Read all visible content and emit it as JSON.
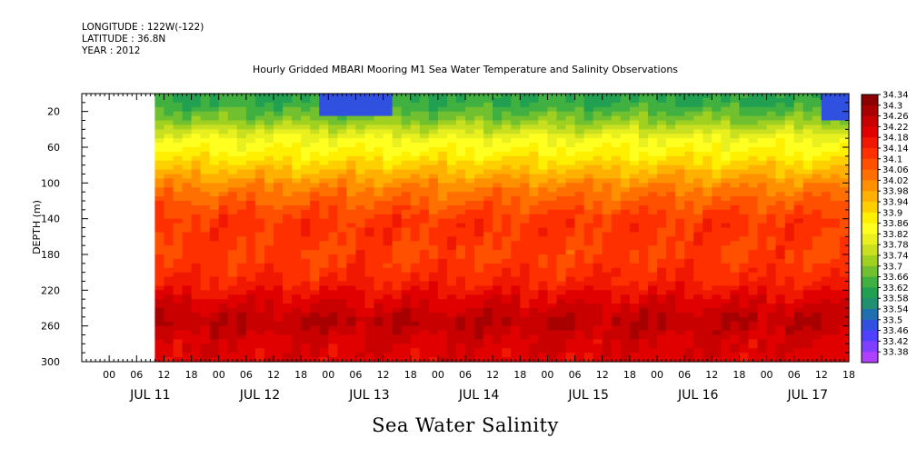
{
  "header": {
    "longitude": "LONGITUDE : 122W(-122)",
    "latitude": "LATITUDE : 36.8N",
    "year": "YEAR : 2012"
  },
  "chart_data": {
    "type": "heatmap",
    "title": "Hourly Gridded MBARI Mooring M1 Sea Water Temperature and Salinity Observations",
    "footer_label": "Sea Water Salinity",
    "ylabel": "DEPTH (m)",
    "y_axis": {
      "range": [
        0,
        300
      ],
      "inverted": true,
      "ticks": [
        20,
        60,
        100,
        140,
        180,
        220,
        260,
        300
      ]
    },
    "x_axis": {
      "hour_ticks": [
        "00",
        "06",
        "12",
        "18",
        "00",
        "06",
        "12",
        "18",
        "00",
        "06",
        "12",
        "18",
        "00",
        "06",
        "12",
        "18",
        "00",
        "06",
        "12",
        "18",
        "00",
        "06",
        "12",
        "18",
        "00",
        "06",
        "12",
        "18"
      ],
      "day_labels": [
        "JUL 11",
        "JUL 12",
        "JUL 13",
        "JUL 14",
        "JUL 15",
        "JUL 16",
        "JUL 17"
      ],
      "data_start_hour": 4,
      "range_hours": [
        -12,
        156
      ]
    },
    "colorbar": {
      "levels": [
        "34.34",
        "34.3",
        "34.26",
        "34.22",
        "34.18",
        "34.14",
        "34.1",
        "34.06",
        "34.02",
        "33.98",
        "33.94",
        "33.9",
        "33.86",
        "33.82",
        "33.78",
        "33.74",
        "33.7",
        "33.66",
        "33.62",
        "33.58",
        "33.54",
        "33.5",
        "33.46",
        "33.42",
        "33.38"
      ],
      "colors": [
        "#8b0000",
        "#a80000",
        "#c80000",
        "#e00000",
        "#f01800",
        "#ff3000",
        "#ff5000",
        "#ff7000",
        "#ff9000",
        "#ffb000",
        "#ffd000",
        "#ffef00",
        "#ffff20",
        "#e8f020",
        "#c8e020",
        "#a0d020",
        "#70c030",
        "#40b040",
        "#20a050",
        "#209070",
        "#2070b0",
        "#3050e0",
        "#5040ff",
        "#8040ff",
        "#b040ff"
      ]
    },
    "depth_profile": [
      {
        "depth": 10,
        "salinity": 33.66
      },
      {
        "depth": 30,
        "salinity": 33.74
      },
      {
        "depth": 50,
        "salinity": 33.86
      },
      {
        "depth": 70,
        "salinity": 33.92
      },
      {
        "depth": 90,
        "salinity": 34.0
      },
      {
        "depth": 105,
        "salinity": 34.06
      },
      {
        "depth": 120,
        "salinity": 34.1
      },
      {
        "depth": 145,
        "salinity": 34.16
      },
      {
        "depth": 180,
        "salinity": 34.14
      },
      {
        "depth": 210,
        "salinity": 34.18
      },
      {
        "depth": 230,
        "salinity": 34.24
      },
      {
        "depth": 255,
        "salinity": 34.3
      },
      {
        "depth": 275,
        "salinity": 34.26
      },
      {
        "depth": 300,
        "salinity": 34.24
      }
    ],
    "fresh_surface_events": [
      {
        "hour_start": 40,
        "hour_end": 55,
        "depth_max": 25,
        "salinity": 33.52
      },
      {
        "hour_start": 150,
        "hour_end": 156,
        "depth_max": 30,
        "salinity": 33.5
      }
    ]
  }
}
